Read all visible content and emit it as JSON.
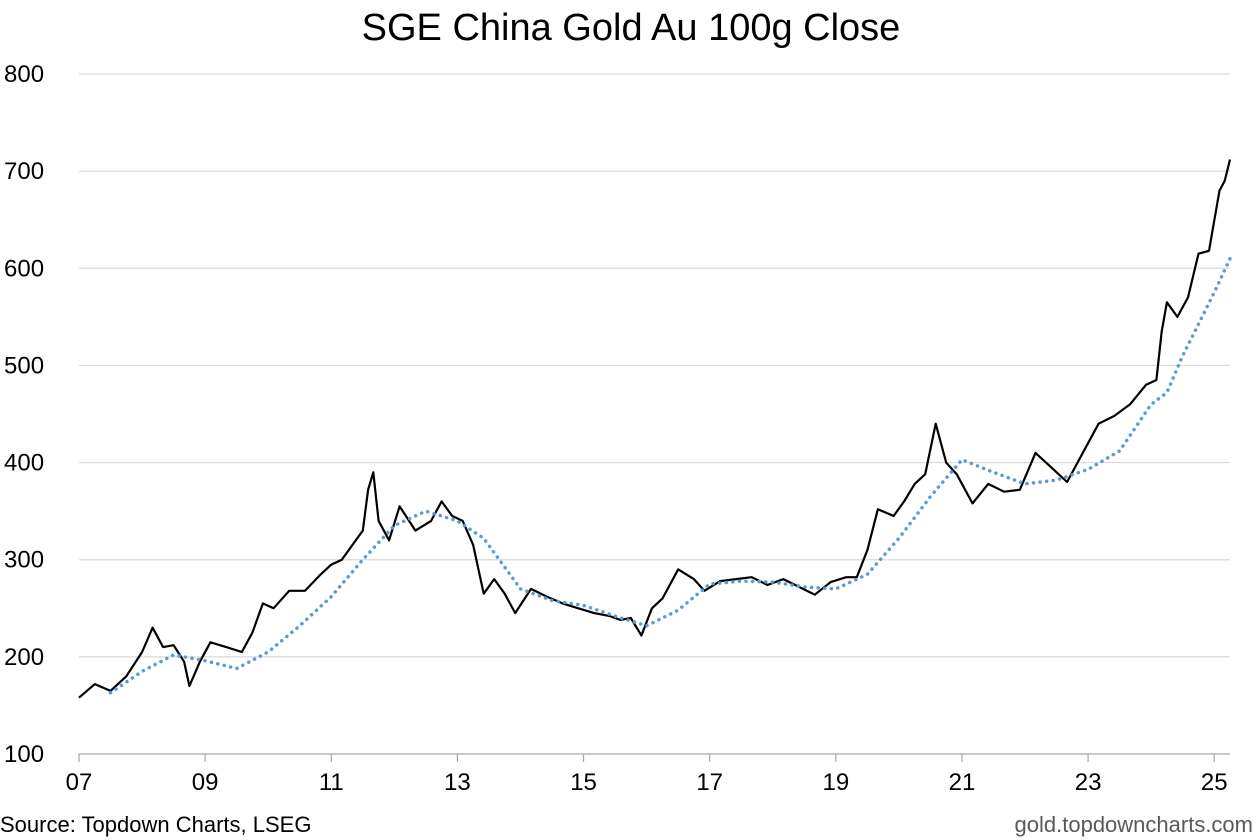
{
  "chart_data": {
    "type": "line",
    "title": "SGE China Gold Au 100g Close",
    "xlabel": "",
    "ylabel": "",
    "ylim": [
      100,
      800
    ],
    "xlim": [
      "2007-01",
      "2025-04"
    ],
    "yticks": [
      100,
      200,
      300,
      400,
      500,
      600,
      700,
      800
    ],
    "xticks": [
      {
        "x": "2007-01",
        "label": "07"
      },
      {
        "x": "2009-01",
        "label": "09"
      },
      {
        "x": "2011-01",
        "label": "11"
      },
      {
        "x": "2013-01",
        "label": "13"
      },
      {
        "x": "2015-01",
        "label": "15"
      },
      {
        "x": "2017-01",
        "label": "17"
      },
      {
        "x": "2019-01",
        "label": "19"
      },
      {
        "x": "2021-01",
        "label": "21"
      },
      {
        "x": "2023-01",
        "label": "23"
      },
      {
        "x": "2025-01",
        "label": "25"
      }
    ],
    "grid": "horizontal",
    "legend": "none",
    "series": [
      {
        "style": "solid",
        "color": "#000000",
        "points": [
          [
            "2007-01",
            158
          ],
          [
            "2007-04",
            172
          ],
          [
            "2007-07",
            165
          ],
          [
            "2007-10",
            180
          ],
          [
            "2008-01",
            205
          ],
          [
            "2008-03",
            230
          ],
          [
            "2008-05",
            210
          ],
          [
            "2008-07",
            212
          ],
          [
            "2008-09",
            195
          ],
          [
            "2008-10",
            170
          ],
          [
            "2008-12",
            195
          ],
          [
            "2009-02",
            215
          ],
          [
            "2009-05",
            210
          ],
          [
            "2009-08",
            205
          ],
          [
            "2009-10",
            225
          ],
          [
            "2009-12",
            255
          ],
          [
            "2010-02",
            250
          ],
          [
            "2010-05",
            268
          ],
          [
            "2010-08",
            268
          ],
          [
            "2010-11",
            285
          ],
          [
            "2011-01",
            295
          ],
          [
            "2011-03",
            300
          ],
          [
            "2011-05",
            315
          ],
          [
            "2011-07",
            330
          ],
          [
            "2011-08",
            372
          ],
          [
            "2011-09",
            390
          ],
          [
            "2011-10",
            340
          ],
          [
            "2011-12",
            320
          ],
          [
            "2012-02",
            355
          ],
          [
            "2012-05",
            330
          ],
          [
            "2012-08",
            340
          ],
          [
            "2012-10",
            360
          ],
          [
            "2012-12",
            345
          ],
          [
            "2013-02",
            340
          ],
          [
            "2013-04",
            315
          ],
          [
            "2013-06",
            265
          ],
          [
            "2013-08",
            280
          ],
          [
            "2013-10",
            265
          ],
          [
            "2013-12",
            245
          ],
          [
            "2014-03",
            270
          ],
          [
            "2014-06",
            262
          ],
          [
            "2014-09",
            255
          ],
          [
            "2014-12",
            250
          ],
          [
            "2015-03",
            245
          ],
          [
            "2015-06",
            242
          ],
          [
            "2015-08",
            238
          ],
          [
            "2015-10",
            240
          ],
          [
            "2015-12",
            222
          ],
          [
            "2016-02",
            250
          ],
          [
            "2016-04",
            260
          ],
          [
            "2016-07",
            290
          ],
          [
            "2016-10",
            280
          ],
          [
            "2016-12",
            268
          ],
          [
            "2017-03",
            278
          ],
          [
            "2017-06",
            280
          ],
          [
            "2017-09",
            282
          ],
          [
            "2017-12",
            274
          ],
          [
            "2018-03",
            280
          ],
          [
            "2018-06",
            272
          ],
          [
            "2018-09",
            264
          ],
          [
            "2018-12",
            277
          ],
          [
            "2019-03",
            282
          ],
          [
            "2019-05",
            282
          ],
          [
            "2019-07",
            310
          ],
          [
            "2019-09",
            352
          ],
          [
            "2019-12",
            345
          ],
          [
            "2020-02",
            360
          ],
          [
            "2020-04",
            378
          ],
          [
            "2020-06",
            388
          ],
          [
            "2020-08",
            440
          ],
          [
            "2020-10",
            400
          ],
          [
            "2020-12",
            388
          ],
          [
            "2021-03",
            358
          ],
          [
            "2021-06",
            378
          ],
          [
            "2021-09",
            370
          ],
          [
            "2021-12",
            372
          ],
          [
            "2022-03",
            410
          ],
          [
            "2022-06",
            395
          ],
          [
            "2022-09",
            380
          ],
          [
            "2022-12",
            410
          ],
          [
            "2023-03",
            440
          ],
          [
            "2023-06",
            448
          ],
          [
            "2023-09",
            460
          ],
          [
            "2023-12",
            480
          ],
          [
            "2024-02",
            485
          ],
          [
            "2024-03",
            535
          ],
          [
            "2024-04",
            565
          ],
          [
            "2024-06",
            550
          ],
          [
            "2024-08",
            570
          ],
          [
            "2024-10",
            615
          ],
          [
            "2024-12",
            618
          ],
          [
            "2025-02",
            680
          ],
          [
            "2025-03",
            690
          ],
          [
            "2025-04",
            712
          ]
        ]
      },
      {
        "style": "dotted",
        "color": "#5B9BD5",
        "points": [
          [
            "2007-07",
            163
          ],
          [
            "2008-01",
            185
          ],
          [
            "2008-07",
            202
          ],
          [
            "2009-01",
            196
          ],
          [
            "2009-07",
            188
          ],
          [
            "2010-01",
            205
          ],
          [
            "2010-07",
            232
          ],
          [
            "2011-01",
            262
          ],
          [
            "2011-07",
            300
          ],
          [
            "2012-01",
            335
          ],
          [
            "2012-07",
            350
          ],
          [
            "2013-01",
            340
          ],
          [
            "2013-06",
            322
          ],
          [
            "2014-01",
            270
          ],
          [
            "2014-07",
            258
          ],
          [
            "2015-01",
            253
          ],
          [
            "2015-07",
            242
          ],
          [
            "2016-01",
            232
          ],
          [
            "2016-07",
            248
          ],
          [
            "2017-01",
            275
          ],
          [
            "2017-07",
            278
          ],
          [
            "2018-01",
            277
          ],
          [
            "2018-07",
            272
          ],
          [
            "2019-01",
            270
          ],
          [
            "2019-07",
            285
          ],
          [
            "2020-01",
            322
          ],
          [
            "2020-07",
            365
          ],
          [
            "2021-01",
            403
          ],
          [
            "2021-07",
            390
          ],
          [
            "2022-01",
            378
          ],
          [
            "2022-07",
            382
          ],
          [
            "2023-01",
            393
          ],
          [
            "2023-07",
            412
          ],
          [
            "2024-01",
            460
          ],
          [
            "2024-04",
            472
          ],
          [
            "2024-07",
            510
          ],
          [
            "2025-01",
            575
          ],
          [
            "2025-04",
            610
          ]
        ]
      }
    ]
  },
  "footer": {
    "source": "Source: Topdown Charts, LSEG",
    "site": "gold.topdowncharts.com"
  }
}
